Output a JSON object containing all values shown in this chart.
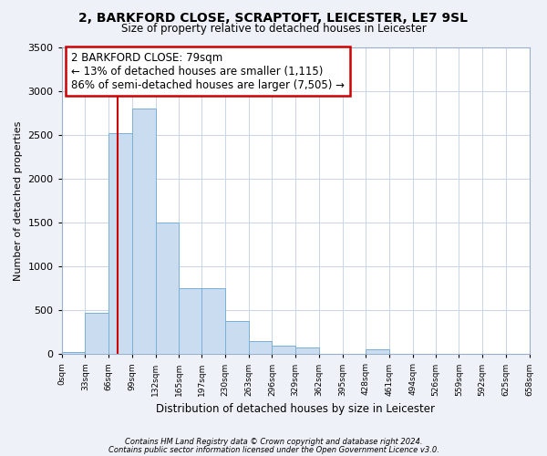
{
  "title": "2, BARKFORD CLOSE, SCRAPTOFT, LEICESTER, LE7 9SL",
  "subtitle": "Size of property relative to detached houses in Leicester",
  "xlabel": "Distribution of detached houses by size in Leicester",
  "ylabel": "Number of detached properties",
  "bin_edges": [
    0,
    33,
    66,
    99,
    132,
    165,
    197,
    230,
    263,
    296,
    329,
    362,
    395,
    428,
    461,
    494,
    526,
    559,
    592,
    625,
    658
  ],
  "bar_heights": [
    25,
    475,
    2520,
    2800,
    1500,
    750,
    750,
    375,
    150,
    100,
    75,
    0,
    0,
    50,
    0,
    0,
    0,
    0,
    0,
    0
  ],
  "bar_color": "#c9dcf0",
  "bar_edge_color": "#7aafd4",
  "vline_x": 79,
  "vline_color": "#cc0000",
  "ylim": [
    0,
    3500
  ],
  "yticks": [
    0,
    500,
    1000,
    1500,
    2000,
    2500,
    3000,
    3500
  ],
  "tick_labels": [
    "0sqm",
    "33sqm",
    "66sqm",
    "99sqm",
    "132sqm",
    "165sqm",
    "197sqm",
    "230sqm",
    "263sqm",
    "296sqm",
    "329sqm",
    "362sqm",
    "395sqm",
    "428sqm",
    "461sqm",
    "494sqm",
    "526sqm",
    "559sqm",
    "592sqm",
    "625sqm",
    "658sqm"
  ],
  "annotation_title": "2 BARKFORD CLOSE: 79sqm",
  "annotation_line1": "← 13% of detached houses are smaller (1,115)",
  "annotation_line2": "86% of semi-detached houses are larger (7,505) →",
  "footnote1": "Contains HM Land Registry data © Crown copyright and database right 2024.",
  "footnote2": "Contains public sector information licensed under the Open Government Licence v3.0.",
  "background_color": "#eef2f8",
  "plot_bg_color": "#ffffff",
  "grid_color": "#c8d4e8"
}
